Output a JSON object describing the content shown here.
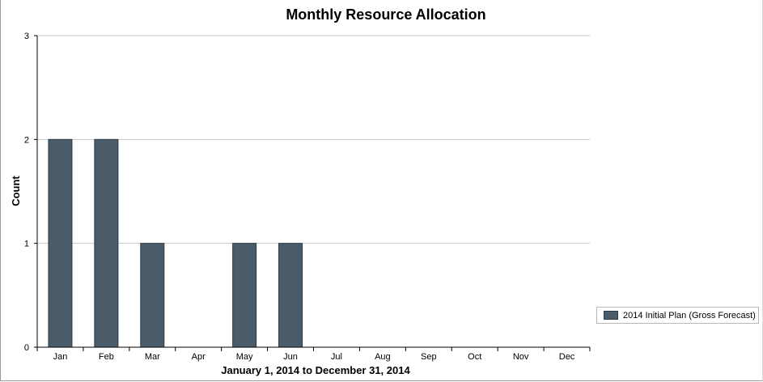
{
  "chart_data": {
    "type": "bar",
    "title": "Monthly Resource Allocation",
    "xlabel": "January 1, 2014 to December 31, 2014",
    "ylabel": "Count",
    "categories": [
      "Jan",
      "Feb",
      "Mar",
      "Apr",
      "May",
      "Jun",
      "Jul",
      "Aug",
      "Sep",
      "Oct",
      "Nov",
      "Dec"
    ],
    "series": [
      {
        "name": "2014 Initial Plan (Gross Forecast)",
        "values": [
          2,
          2,
          1,
          0,
          1,
          1,
          0,
          0,
          0,
          0,
          0,
          0
        ],
        "color": "#4a5c6a"
      }
    ],
    "ylim": [
      0,
      3
    ],
    "yticks": [
      "0",
      "1",
      "2",
      "3"
    ],
    "grid": true,
    "legend_position": "right"
  }
}
